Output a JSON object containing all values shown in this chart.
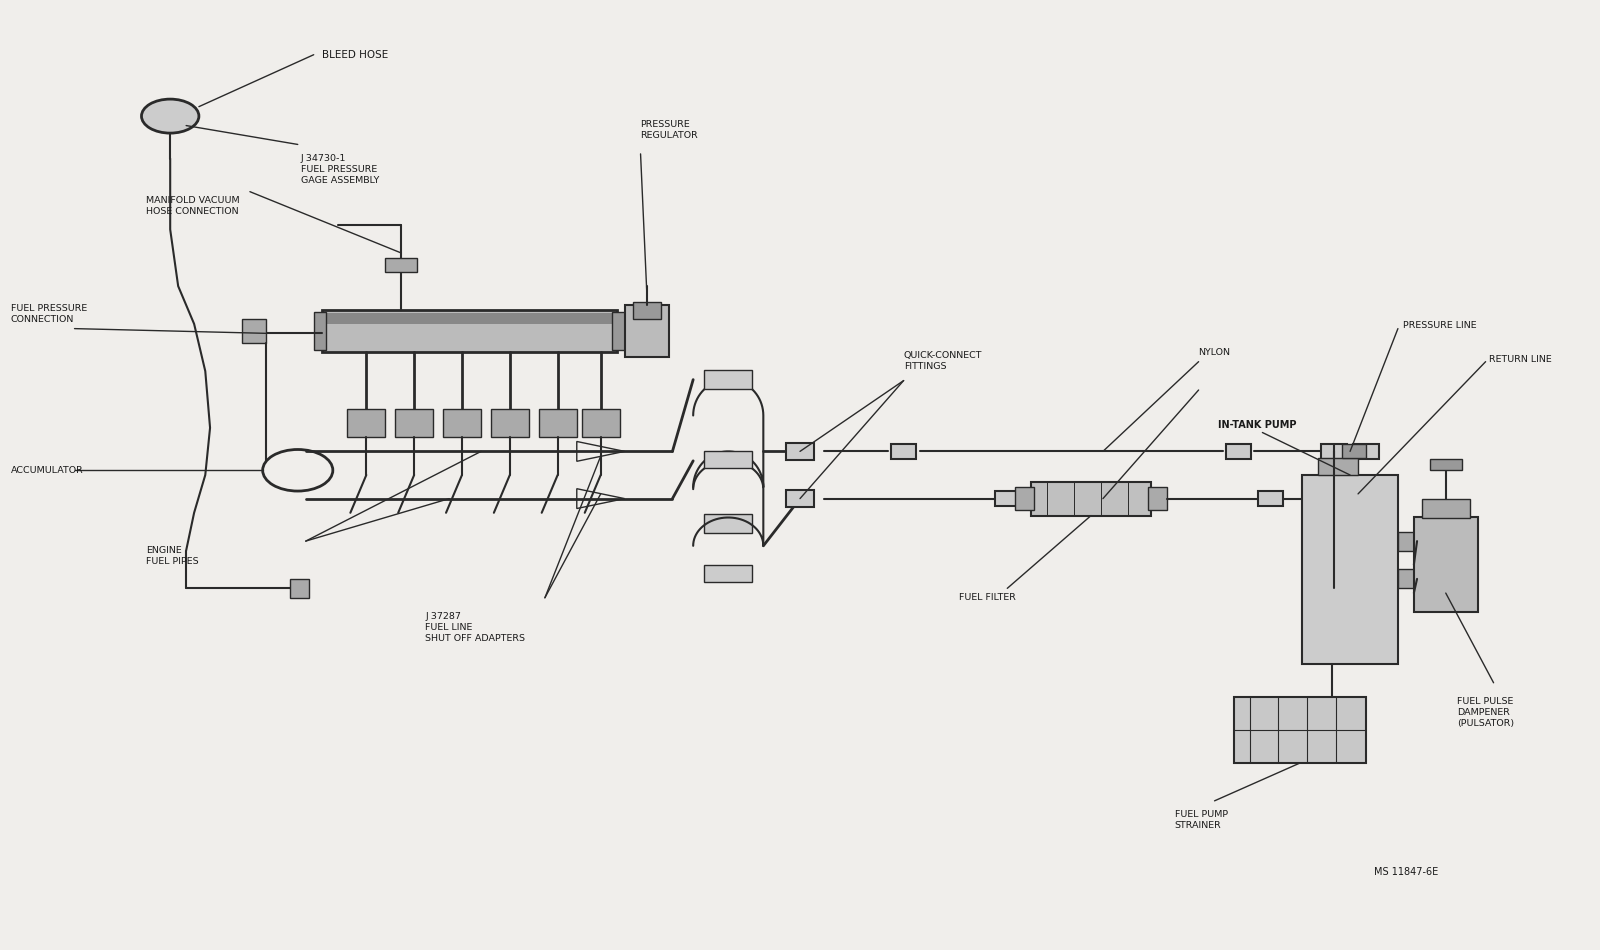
{
  "bg_color": "#f0eeeb",
  "line_color": "#2a2a2a",
  "text_color": "#1a1a1a",
  "fig_width": 16.0,
  "fig_height": 9.5,
  "labels": {
    "bleed_hose": "BLEED HOSE",
    "fuel_pressure_gage": "J 34730-1\nFUEL PRESSURE\nGAGE ASSEMBLY",
    "manifold_vacuum": "MANIFOLD VACUUM\nHOSE CONNECTION",
    "pressure_regulator": "PRESSURE\nREGULATOR",
    "fuel_pressure_conn": "FUEL PRESSURE\nCONNECTION",
    "accumulator": "ACCUMULATOR",
    "quick_connect": "QUICK-CONNECT\nFITTINGS",
    "nylon": "NYLON",
    "pressure_line": "PRESSURE LINE",
    "return_line": "RETURN LINE",
    "in_tank_pump": "IN-TANK PUMP",
    "fuel_filter": "FUEL FILTER",
    "engine_fuel_pipes": "ENGINE\nFUEL PIPES",
    "j37287": "J 37287\nFUEL LINE\nSHUT OFF ADAPTERS",
    "fuel_pump_strainer": "FUEL PUMP\nSTRAINER",
    "fuel_pulse_dampener": "FUEL PULSE\nDAMPENER\n(PULSATOR)",
    "ms_code": "MS 11847-6E"
  }
}
